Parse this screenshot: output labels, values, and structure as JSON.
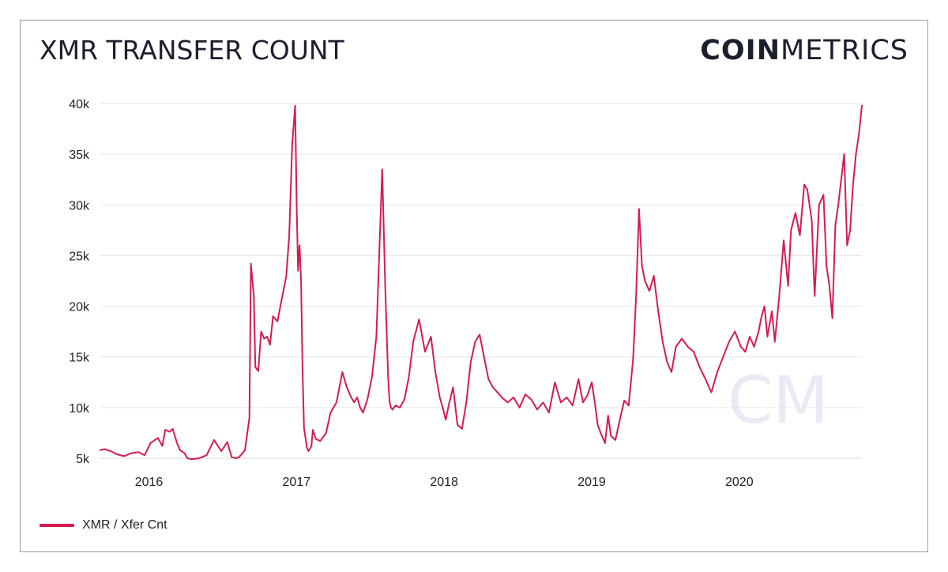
{
  "title": "XMR TRANSFER COUNT",
  "brand": {
    "bold": "COIN",
    "light": "METRICS",
    "watermark": "CM"
  },
  "colors": {
    "line": "#d41c4f",
    "grid": "#e6e6e6",
    "text": "#1b1f2e",
    "watermark": "#e8ebf3"
  },
  "chart_data": {
    "type": "line",
    "title": "XMR TRANSFER COUNT",
    "xlabel": "",
    "ylabel": "",
    "xlim": [
      2015.66,
      2020.82
    ],
    "ylim": [
      5000,
      40000
    ],
    "y_ticks": [
      {
        "value": 5000,
        "label": "5k"
      },
      {
        "value": 10000,
        "label": "10k"
      },
      {
        "value": 15000,
        "label": "15k"
      },
      {
        "value": 20000,
        "label": "20k"
      },
      {
        "value": 25000,
        "label": "25k"
      },
      {
        "value": 30000,
        "label": "30k"
      },
      {
        "value": 35000,
        "label": "35k"
      },
      {
        "value": 40000,
        "label": "40k"
      }
    ],
    "x_ticks": [
      {
        "value": 2016,
        "label": "2016"
      },
      {
        "value": 2017,
        "label": "2017"
      },
      {
        "value": 2018,
        "label": "2018"
      },
      {
        "value": 2019,
        "label": "2019"
      },
      {
        "value": 2020,
        "label": "2020"
      }
    ],
    "grid": "horizontal",
    "legend": {
      "position": "bottom-left"
    },
    "series": [
      {
        "name": "XMR / Xfer Cnt",
        "x": [
          2015.66,
          2015.69,
          2015.73,
          2015.77,
          2015.82,
          2015.87,
          2015.92,
          2015.96,
          2016.0,
          2016.05,
          2016.08,
          2016.1,
          2016.13,
          2016.15,
          2016.18,
          2016.2,
          2016.23,
          2016.25,
          2016.28,
          2016.33,
          2016.38,
          2016.43,
          2016.48,
          2016.52,
          2016.55,
          2016.58,
          2016.6,
          2016.64,
          2016.67,
          2016.68,
          2016.7,
          2016.71,
          2016.73,
          2016.75,
          2016.77,
          2016.79,
          2016.81,
          2016.83,
          2016.86,
          2016.88,
          2016.9,
          2016.92,
          2016.94,
          2016.96,
          2016.98,
          2016.99,
          2017.0,
          2017.01,
          2017.02,
          2017.03,
          2017.04,
          2017.06,
          2017.07,
          2017.09,
          2017.1,
          2017.12,
          2017.15,
          2017.19,
          2017.22,
          2017.26,
          2017.3,
          2017.33,
          2017.36,
          2017.38,
          2017.4,
          2017.42,
          2017.44,
          2017.47,
          2017.5,
          2017.53,
          2017.57,
          2017.59,
          2017.61,
          2017.62,
          2017.63,
          2017.64,
          2017.66,
          2017.69,
          2017.72,
          2017.75,
          2017.78,
          2017.82,
          2017.86,
          2017.9,
          2017.93,
          2017.96,
          2017.98,
          2018.0,
          2018.02,
          2018.05,
          2018.08,
          2018.11,
          2018.14,
          2018.17,
          2018.2,
          2018.23,
          2018.26,
          2018.29,
          2018.32,
          2018.35,
          2018.38,
          2018.42,
          2018.46,
          2018.5,
          2018.54,
          2018.58,
          2018.62,
          2018.66,
          2018.7,
          2018.74,
          2018.78,
          2018.82,
          2018.86,
          2018.9,
          2018.93,
          2018.96,
          2018.99,
          2019.01,
          2019.03,
          2019.05,
          2019.08,
          2019.1,
          2019.12,
          2019.15,
          2019.18,
          2019.21,
          2019.24,
          2019.27,
          2019.29,
          2019.31,
          2019.33,
          2019.35,
          2019.38,
          2019.41,
          2019.44,
          2019.47,
          2019.5,
          2019.53,
          2019.56,
          2019.6,
          2019.64,
          2019.68,
          2019.72,
          2019.76,
          2019.8,
          2019.84,
          2019.88,
          2019.92,
          2019.96,
          2020.0,
          2020.03,
          2020.06,
          2020.09,
          2020.12,
          2020.14,
          2020.16,
          2020.18,
          2020.21,
          2020.23,
          2020.26,
          2020.29,
          2020.32,
          2020.34,
          2020.37,
          2020.4,
          2020.43,
          2020.45,
          2020.48,
          2020.5,
          2020.53,
          2020.56,
          2020.58,
          2020.6,
          2020.62,
          2020.64,
          2020.66,
          2020.68,
          2020.7,
          2020.72,
          2020.74,
          2020.76,
          2020.78,
          2020.8,
          2020.82
        ],
        "y": [
          5800,
          5900,
          5700,
          5400,
          5200,
          5500,
          5600,
          5300,
          6500,
          7000,
          6200,
          7800,
          7600,
          7900,
          6500,
          5800,
          5500,
          5000,
          4900,
          5000,
          5300,
          6800,
          5700,
          6600,
          5100,
          5000,
          5100,
          5800,
          9000,
          24200,
          21000,
          14000,
          13600,
          17500,
          16800,
          17000,
          16200,
          19000,
          18500,
          20000,
          21500,
          23000,
          27000,
          36000,
          39800,
          30000,
          23500,
          26000,
          22500,
          14000,
          8000,
          6000,
          5700,
          6200,
          7800,
          6900,
          6700,
          7500,
          9500,
          10500,
          13500,
          12000,
          11000,
          10500,
          11000,
          10000,
          9500,
          10800,
          13000,
          17000,
          33500,
          22000,
          13000,
          10500,
          10000,
          9800,
          10200,
          10000,
          10800,
          13000,
          16500,
          18700,
          15500,
          17000,
          13500,
          11000,
          10000,
          8800,
          10200,
          12000,
          8300,
          7900,
          10500,
          14500,
          16500,
          17200,
          15000,
          12800,
          12000,
          11500,
          11000,
          10500,
          11000,
          10000,
          11300,
          10800,
          9800,
          10500,
          9500,
          12500,
          10500,
          11000,
          10200,
          12800,
          10500,
          11200,
          12500,
          10500,
          8300,
          7500,
          6500,
          9200,
          7200,
          6800,
          8800,
          10700,
          10200,
          14800,
          21000,
          29600,
          24000,
          22500,
          21500,
          23000,
          19500,
          16500,
          14500,
          13500,
          16000,
          16800,
          16000,
          15500,
          14000,
          12800,
          11500,
          13500,
          15000,
          16500,
          17500,
          16000,
          15500,
          17000,
          16000,
          17500,
          19000,
          20000,
          17000,
          19500,
          16500,
          21000,
          26500,
          22000,
          27500,
          29200,
          27000,
          32000,
          31500,
          28500,
          21000,
          30000,
          31000,
          24000,
          22000,
          18800,
          28000,
          30000,
          32500,
          35000,
          26000,
          27500,
          32000,
          35000,
          37000,
          39800
        ]
      }
    ]
  }
}
